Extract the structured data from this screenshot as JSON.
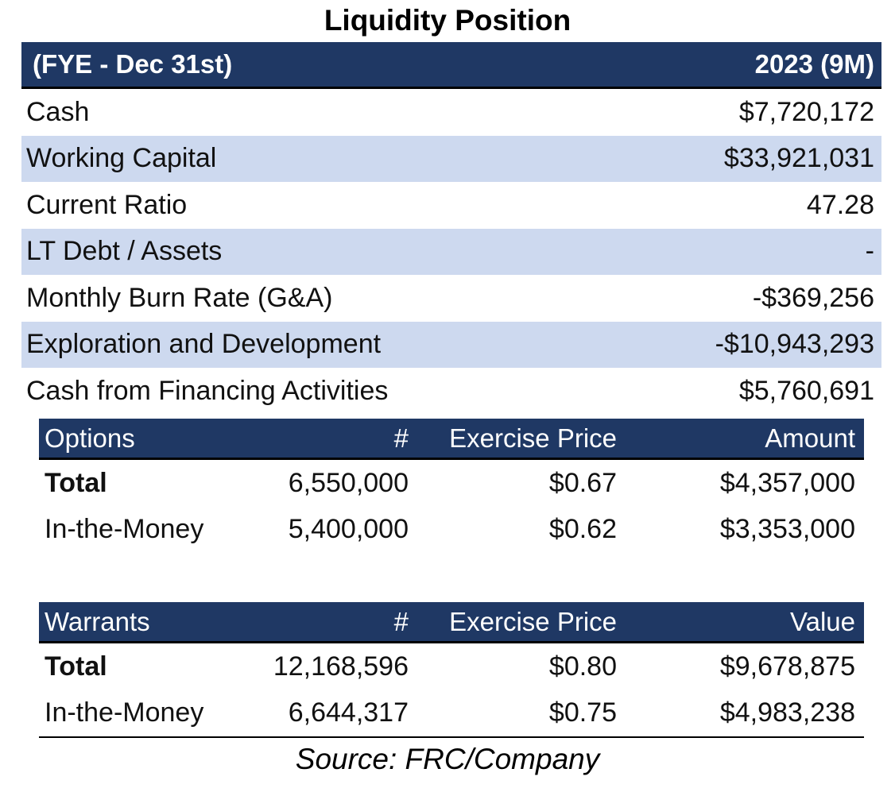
{
  "title": "Liquidity Position",
  "liquidity": {
    "header_label": "(FYE - Dec 31st)",
    "header_period": "2023 (9M)",
    "rows": [
      {
        "label": "Cash",
        "value": "$7,720,172"
      },
      {
        "label": "Working Capital",
        "value": "$33,921,031"
      },
      {
        "label": "Current Ratio",
        "value": "47.28"
      },
      {
        "label": "LT Debt / Assets",
        "value": "-"
      },
      {
        "label": "Monthly Burn Rate (G&A)",
        "value": "-$369,256"
      },
      {
        "label": "Exploration and Development",
        "value": "-$10,943,293"
      },
      {
        "label": "Cash from Financing Activities",
        "value": "$5,760,691"
      }
    ]
  },
  "options": {
    "headers": [
      "Options",
      "#",
      "Exercise Price",
      "Amount"
    ],
    "rows": [
      {
        "label": "Total",
        "count": "6,550,000",
        "price": "$0.67",
        "amount": "$4,357,000"
      },
      {
        "label": "In-the-Money",
        "count": "5,400,000",
        "price": "$0.62",
        "amount": "$3,353,000"
      }
    ]
  },
  "warrants": {
    "headers": [
      "Warrants",
      "#",
      "Exercise Price",
      "Value"
    ],
    "rows": [
      {
        "label": "Total",
        "count": "12,168,596",
        "price": "$0.80",
        "amount": "$9,678,875"
      },
      {
        "label": "In-the-Money",
        "count": "6,644,317",
        "price": "$0.75",
        "amount": "$4,983,238"
      }
    ]
  },
  "source": "Source: FRC/Company",
  "colors": {
    "header_bg": "#1f3864",
    "shade_bg": "#cdd9ef"
  }
}
